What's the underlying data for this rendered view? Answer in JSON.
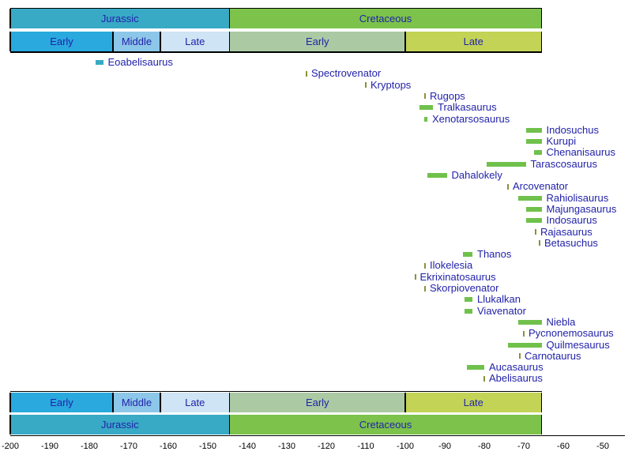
{
  "chart_data": {
    "type": "timeline",
    "title": "",
    "description": "Temporal range chart of abelisauroid dinosaur genera across the Jurassic and Cretaceous periods; geological period and epoch bands mirrored at top and bottom, numeric time axis in millions of years (Ma) at the bottom.",
    "x_axis": {
      "unit": "Ma",
      "min": -200,
      "max": -44,
      "major_tick_step": 10,
      "minor_tick_step": 2,
      "major_tick_labels": [
        "-200",
        "-190",
        "-180",
        "-170",
        "-160",
        "-150",
        "-140",
        "-130",
        "-120",
        "-110",
        "-100",
        "-90",
        "-80",
        "-70",
        "-60",
        "-50"
      ]
    },
    "periods": [
      {
        "label": "Jurassic",
        "start": -200,
        "end": -144.5,
        "color": "#38aac5"
      },
      {
        "label": "Cretaceous",
        "start": -144.5,
        "end": -65.5,
        "color": "#7cc24b"
      }
    ],
    "epochs": [
      {
        "label": "Early",
        "period": "Jurassic",
        "start": -200,
        "end": -174,
        "color": "#29a9dd"
      },
      {
        "label": "Middle",
        "period": "Jurassic",
        "start": -174,
        "end": -162,
        "color": "#8cc6e8"
      },
      {
        "label": "Late",
        "period": "Jurassic",
        "start": -162,
        "end": -144.5,
        "color": "#cfe4f4"
      },
      {
        "label": "Early",
        "period": "Cretaceous",
        "start": -144.5,
        "end": -100,
        "color": "#abc9a3"
      },
      {
        "label": "Late",
        "period": "Cretaceous",
        "start": -100,
        "end": -65.5,
        "color": "#c2d355"
      }
    ],
    "taxa": [
      {
        "name": "Eoabelisaurus",
        "start": -178.5,
        "end": -176.5,
        "style": "jurassic-range"
      },
      {
        "name": "Spectrovenator",
        "start": -125,
        "end": -125,
        "style": "point"
      },
      {
        "name": "Kryptops",
        "start": -110,
        "end": -110,
        "style": "point"
      },
      {
        "name": "Rugops",
        "start": -95,
        "end": -95,
        "style": "point"
      },
      {
        "name": "Tralkasaurus",
        "start": -96.5,
        "end": -93,
        "style": "range"
      },
      {
        "name": "Xenotarsosaurus",
        "start": -95.2,
        "end": -94.4,
        "style": "range"
      },
      {
        "name": "Indosuchus",
        "start": -69.5,
        "end": -65.5,
        "style": "range"
      },
      {
        "name": "Kurupi",
        "start": -69.5,
        "end": -65.5,
        "style": "range"
      },
      {
        "name": "Chenanisaurus",
        "start": -67.5,
        "end": -65.5,
        "style": "range"
      },
      {
        "name": "Tarascosaurus",
        "start": -79.5,
        "end": -69.5,
        "style": "range"
      },
      {
        "name": "Dahalokely",
        "start": -94.5,
        "end": -89.5,
        "style": "range"
      },
      {
        "name": "Arcovenator",
        "start": -74,
        "end": -74,
        "style": "point"
      },
      {
        "name": "Rahiolisaurus",
        "start": -71.5,
        "end": -65.5,
        "style": "range"
      },
      {
        "name": "Majungasaurus",
        "start": -69.5,
        "end": -65.5,
        "style": "range"
      },
      {
        "name": "Indosaurus",
        "start": -69.5,
        "end": -65.5,
        "style": "range"
      },
      {
        "name": "Rajasaurus",
        "start": -67,
        "end": -67,
        "style": "point"
      },
      {
        "name": "Betasuchus",
        "start": -66,
        "end": -66,
        "style": "point"
      },
      {
        "name": "Thanos",
        "start": -85.5,
        "end": -83,
        "style": "range"
      },
      {
        "name": "Ilokelesia",
        "start": -95,
        "end": -95,
        "style": "point"
      },
      {
        "name": "Ekrixinatosaurus",
        "start": -97.5,
        "end": -97.5,
        "style": "point"
      },
      {
        "name": "Skorpiovenator",
        "start": -95,
        "end": -95,
        "style": "point"
      },
      {
        "name": "Llukalkan",
        "start": -85,
        "end": -83,
        "style": "range"
      },
      {
        "name": "Viavenator",
        "start": -85,
        "end": -83,
        "style": "range"
      },
      {
        "name": "Niebla",
        "start": -71.5,
        "end": -65.5,
        "style": "range"
      },
      {
        "name": "Pycnonemosaurus",
        "start": -70,
        "end": -70,
        "style": "point"
      },
      {
        "name": "Quilmesaurus",
        "start": -74,
        "end": -65.5,
        "style": "range"
      },
      {
        "name": "Carnotaurus",
        "start": -71,
        "end": -71,
        "style": "point"
      },
      {
        "name": "Aucasaurus",
        "start": -84.5,
        "end": -80,
        "style": "range"
      },
      {
        "name": "Abelisaurus",
        "start": -80,
        "end": -80,
        "style": "point"
      }
    ],
    "colors": {
      "range_bar_cretaceous": "#70c14b",
      "range_bar_jurassic": "#3aaac2",
      "point_marker": "#8c9138",
      "label_text": "#2222aa",
      "axis_text": "#000000",
      "axis_line": "#000000",
      "background": "#ffffff"
    },
    "legend_position": "none",
    "grid": "off"
  }
}
